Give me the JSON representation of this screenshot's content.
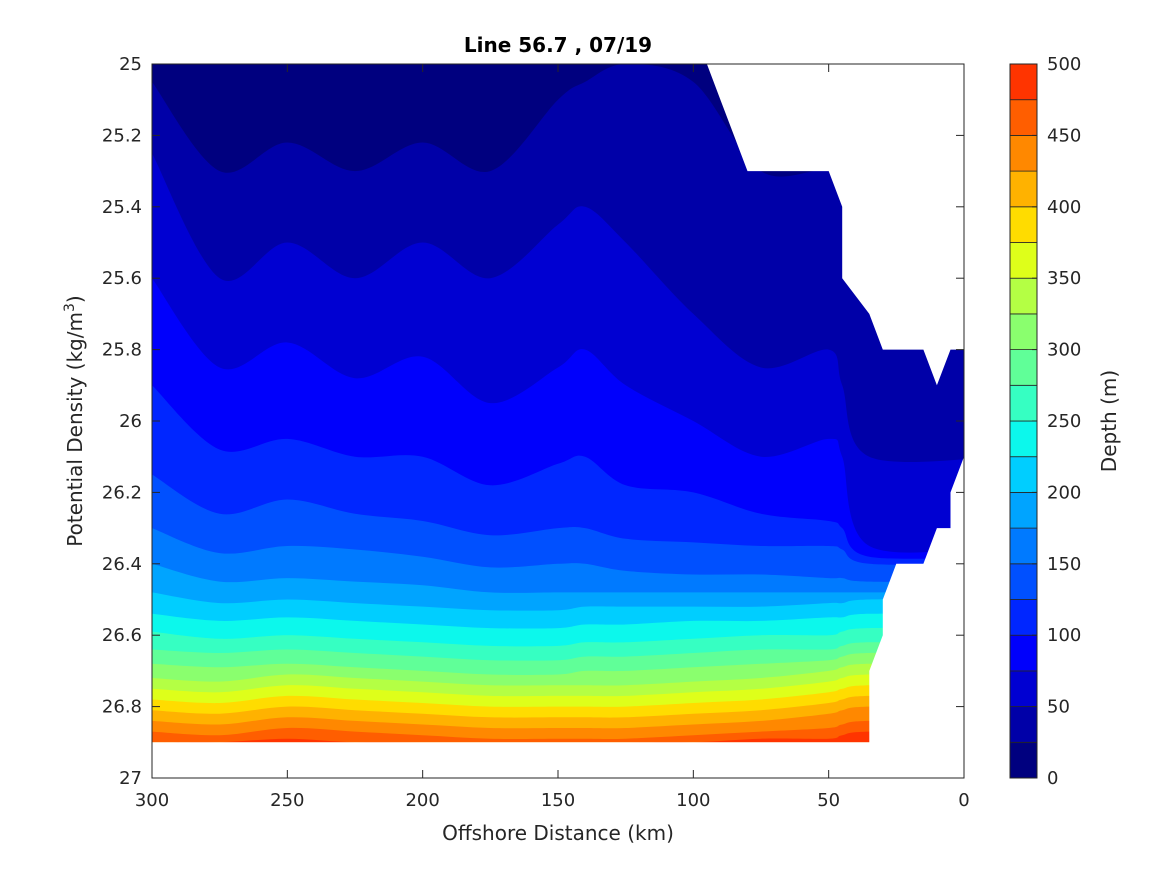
{
  "chart_data": {
    "type": "contour",
    "title": "Line 56.7 , 07/19",
    "xlabel": "Offshore Distance (km)",
    "ylabel_text": "Potential Density (kg/m",
    "ylabel_sup": "3",
    "ylabel_close": ")",
    "colorbar_label": "Depth (m)",
    "xlim": [
      0,
      300
    ],
    "x_reversed": true,
    "ylim": [
      25,
      27
    ],
    "y_reversed": true,
    "x_ticks": [
      300,
      250,
      200,
      150,
      100,
      50,
      0
    ],
    "x_tick_labels": [
      "300",
      "250",
      "200",
      "150",
      "100",
      "50",
      "0"
    ],
    "y_ticks": [
      25,
      25.2,
      25.4,
      25.6,
      25.8,
      26,
      26.2,
      26.4,
      26.6,
      26.8,
      27
    ],
    "y_tick_labels": [
      "25",
      "25.2",
      "25.4",
      "25.6",
      "25.8",
      "26",
      "26.2",
      "26.4",
      "26.6",
      "26.8",
      "27"
    ],
    "colorbar_ticks": [
      0,
      50,
      100,
      150,
      200,
      250,
      300,
      350,
      400,
      450,
      500
    ],
    "colorbar_tick_labels": [
      "0",
      "50",
      "100",
      "150",
      "200",
      "250",
      "300",
      "350",
      "400",
      "450",
      "500"
    ],
    "levels": [
      0,
      25,
      50,
      75,
      100,
      125,
      150,
      175,
      200,
      225,
      250,
      275,
      300,
      325,
      350,
      375,
      400,
      425,
      450,
      475,
      500
    ],
    "colormap": [
      "#00007f",
      "#0000a8",
      "#0000d2",
      "#0000fc",
      "#0026ff",
      "#0050ff",
      "#007aff",
      "#00a4ff",
      "#00ceff",
      "#0cf8ec",
      "#36ffc2",
      "#60ff98",
      "#8aff6e",
      "#b4ff44",
      "#deff1a",
      "#ffdc00",
      "#ffb200",
      "#ff8800",
      "#ff5e00",
      "#ff3400",
      "#ff0a00",
      "#b20000"
    ],
    "x_nodes": [
      300,
      275,
      250,
      225,
      200,
      175,
      150,
      140,
      125,
      100,
      75,
      50,
      45,
      35
    ],
    "isopycnal_depth_contours": [
      {
        "depth": 25,
        "density": [
          25.05,
          25.3,
          25.22,
          25.3,
          25.22,
          25.3,
          25.1,
          25.05,
          25.0,
          25.05,
          25.3,
          25.3,
          25.4,
          25.65
        ]
      },
      {
        "depth": 50,
        "density": [
          25.25,
          25.6,
          25.5,
          25.6,
          25.5,
          25.6,
          25.45,
          25.4,
          25.5,
          25.7,
          25.85,
          25.8,
          25.9,
          26.1
        ]
      },
      {
        "depth": 75,
        "density": [
          25.6,
          25.85,
          25.78,
          25.88,
          25.82,
          25.95,
          25.85,
          25.8,
          25.9,
          26.0,
          26.1,
          26.05,
          26.1,
          26.35
        ]
      },
      {
        "depth": 100,
        "density": [
          25.9,
          26.08,
          26.05,
          26.1,
          26.1,
          26.18,
          26.12,
          26.1,
          26.18,
          26.2,
          26.26,
          26.28,
          26.3,
          26.38
        ]
      },
      {
        "depth": 125,
        "density": [
          26.15,
          26.26,
          26.22,
          26.26,
          26.28,
          26.32,
          26.3,
          26.3,
          26.33,
          26.34,
          26.35,
          26.35,
          26.36,
          26.4
        ]
      },
      {
        "depth": 150,
        "density": [
          26.3,
          26.37,
          26.35,
          26.36,
          26.38,
          26.41,
          26.4,
          26.4,
          26.42,
          26.43,
          26.43,
          26.44,
          26.44,
          26.45
        ]
      },
      {
        "depth": 175,
        "density": [
          26.4,
          26.45,
          26.44,
          26.45,
          26.46,
          26.48,
          26.48,
          26.48,
          26.48,
          26.48,
          26.48,
          26.48,
          26.48,
          26.48
        ]
      },
      {
        "depth": 200,
        "density": [
          26.48,
          26.51,
          26.5,
          26.51,
          26.52,
          26.53,
          26.53,
          26.52,
          26.52,
          26.52,
          26.52,
          26.51,
          26.51,
          26.5
        ]
      },
      {
        "depth": 225,
        "density": [
          26.54,
          26.56,
          26.55,
          26.56,
          26.57,
          26.58,
          26.58,
          26.57,
          26.57,
          26.56,
          26.56,
          26.55,
          26.55,
          26.54
        ]
      },
      {
        "depth": 250,
        "density": [
          26.59,
          26.61,
          26.6,
          26.61,
          26.62,
          26.63,
          26.63,
          26.62,
          26.62,
          26.61,
          26.6,
          26.6,
          26.59,
          26.58
        ]
      },
      {
        "depth": 275,
        "density": [
          26.64,
          26.65,
          26.64,
          26.65,
          26.66,
          26.67,
          26.67,
          26.66,
          26.66,
          26.65,
          26.64,
          26.64,
          26.63,
          26.62
        ]
      },
      {
        "depth": 300,
        "density": [
          26.68,
          26.69,
          26.68,
          26.69,
          26.7,
          26.71,
          26.71,
          26.7,
          26.7,
          26.69,
          26.68,
          26.67,
          26.66,
          26.65
        ]
      },
      {
        "depth": 325,
        "density": [
          26.72,
          26.73,
          26.71,
          26.72,
          26.73,
          26.74,
          26.74,
          26.74,
          26.74,
          26.73,
          26.72,
          26.7,
          26.69,
          26.68
        ]
      },
      {
        "depth": 350,
        "density": [
          26.75,
          26.76,
          26.74,
          26.75,
          26.76,
          26.77,
          26.77,
          26.77,
          26.77,
          26.76,
          26.75,
          26.73,
          26.72,
          26.71
        ]
      },
      {
        "depth": 375,
        "density": [
          26.78,
          26.79,
          26.77,
          26.78,
          26.79,
          26.8,
          26.8,
          26.8,
          26.8,
          26.79,
          26.78,
          26.76,
          26.75,
          26.74
        ]
      },
      {
        "depth": 400,
        "density": [
          26.81,
          26.82,
          26.8,
          26.81,
          26.82,
          26.83,
          26.83,
          26.83,
          26.83,
          26.82,
          26.81,
          26.79,
          26.78,
          26.77
        ]
      },
      {
        "depth": 425,
        "density": [
          26.84,
          26.85,
          26.83,
          26.84,
          26.85,
          26.86,
          26.86,
          26.86,
          26.86,
          26.85,
          26.84,
          26.82,
          26.81,
          26.8
        ]
      },
      {
        "depth": 450,
        "density": [
          26.87,
          26.88,
          26.86,
          26.87,
          26.88,
          26.89,
          26.89,
          26.89,
          26.89,
          26.88,
          26.87,
          26.86,
          26.85,
          26.84
        ]
      },
      {
        "depth": 475,
        "density": [
          26.9,
          26.9,
          26.89,
          26.9,
          26.9,
          26.9,
          26.9,
          26.9,
          26.9,
          26.9,
          26.89,
          26.89,
          26.88,
          26.87
        ]
      }
    ],
    "data_extent": {
      "bottom_density": 26.9,
      "offshore_edge_km": 35,
      "shallow_boundary": {
        "x": [
          95,
          90,
          80,
          75,
          50,
          45,
          45,
          35,
          30,
          25,
          15,
          10,
          5,
          0,
          0
        ],
        "density": [
          25.0,
          25.1,
          25.3,
          25.3,
          25.3,
          25.4,
          25.6,
          25.7,
          25.8,
          25.8,
          25.8,
          25.9,
          25.8,
          25.8,
          26.1
        ]
      },
      "deep_boundary": {
        "x": [
          0,
          5,
          5,
          10,
          15,
          25,
          30,
          30,
          35,
          35
        ],
        "density": [
          26.1,
          26.2,
          26.3,
          26.3,
          26.4,
          26.4,
          26.5,
          26.6,
          26.7,
          26.9
        ]
      }
    }
  }
}
